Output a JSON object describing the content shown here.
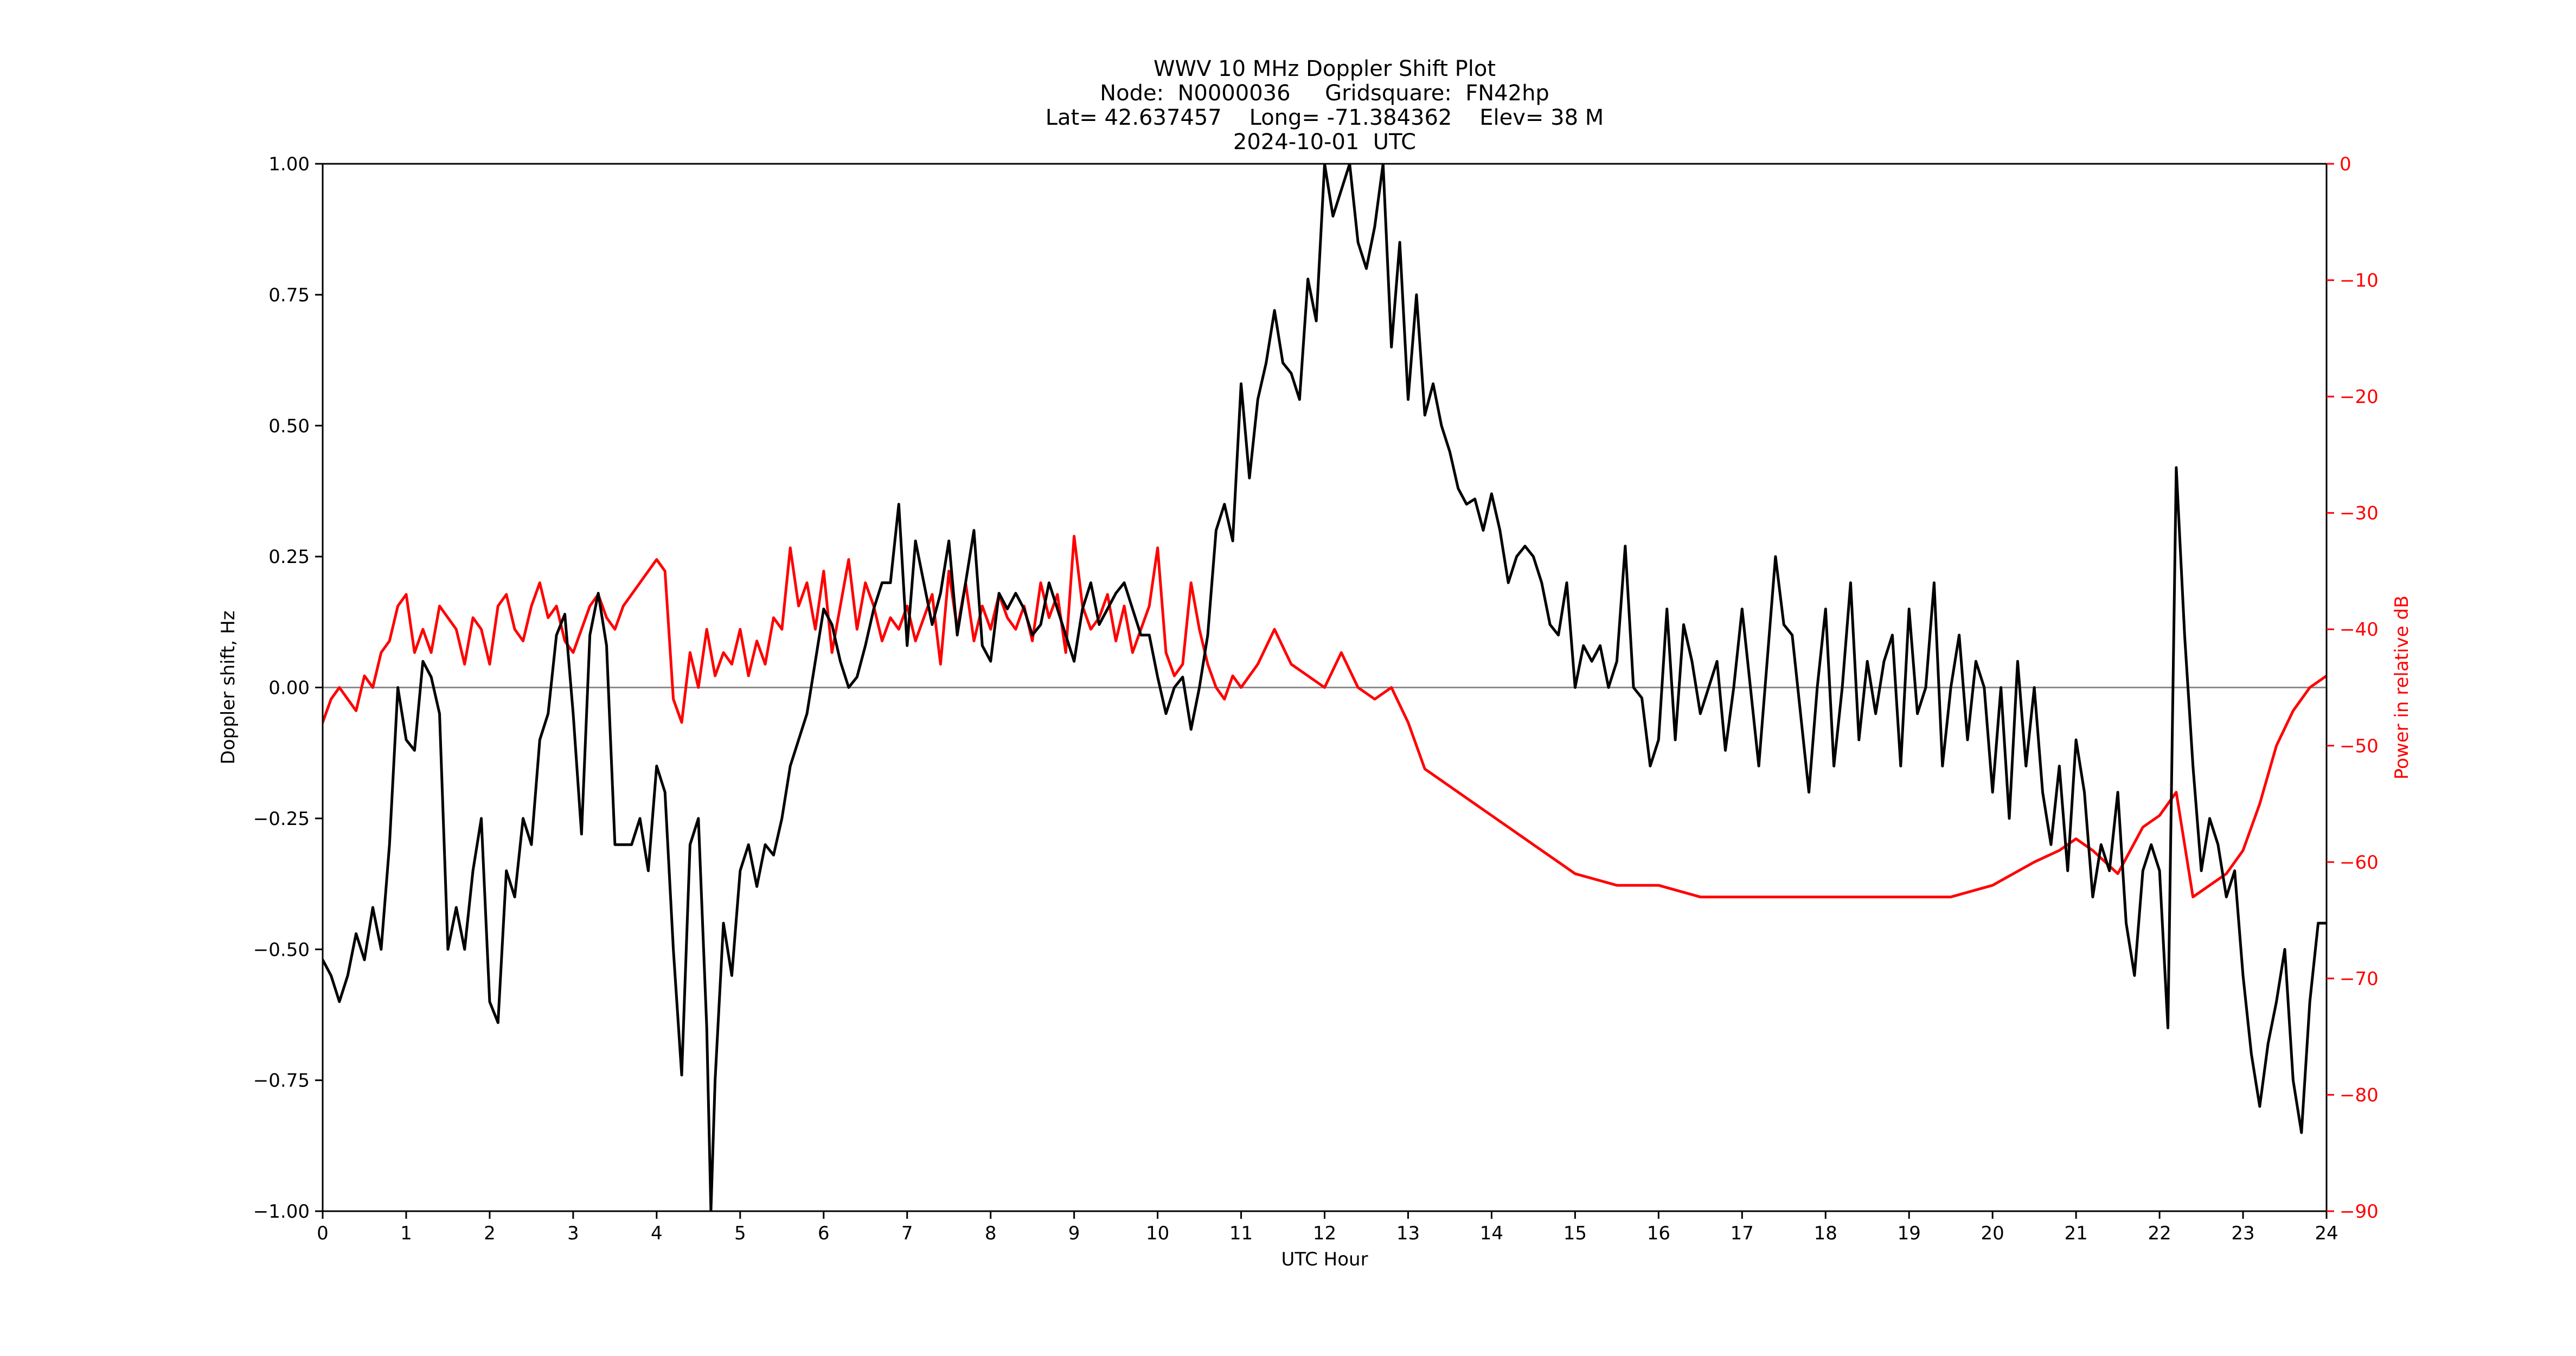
{
  "chart_data": {
    "type": "line",
    "title_lines": [
      "WWV 10 MHz Doppler Shift Plot",
      "Node:  N0000036     Gridsquare:  FN42hp",
      "Lat= 42.637457    Long= -71.384362    Elev= 38 M",
      "2024-10-01  UTC"
    ],
    "xlabel": "UTC Hour",
    "ylabel": "Doppler shift, Hz",
    "ylabel_right": "Power in relative dB",
    "xlim": [
      0,
      24
    ],
    "ylim": [
      -1.0,
      1.0
    ],
    "ylim_right": [
      -90,
      0
    ],
    "x_ticks": [
      "0",
      "1",
      "2",
      "3",
      "4",
      "5",
      "6",
      "7",
      "8",
      "9",
      "10",
      "11",
      "12",
      "13",
      "14",
      "15",
      "16",
      "17",
      "18",
      "19",
      "20",
      "21",
      "22",
      "23",
      "24"
    ],
    "y_ticks": [
      "1.00",
      "0.75",
      "0.50",
      "0.25",
      "0.00",
      "−0.25",
      "−0.50",
      "−0.75",
      "−1.00"
    ],
    "y_ticks_right": [
      "0",
      "−10",
      "−20",
      "−30",
      "−40",
      "−50",
      "−60",
      "−70",
      "−80",
      "−90"
    ],
    "zero_line": 0,
    "series": [
      {
        "color": "#000000",
        "axis": "left",
        "x": [
          0,
          0.1,
          0.2,
          0.3,
          0.4,
          0.5,
          0.6,
          0.7,
          0.8,
          0.9,
          1.0,
          1.1,
          1.2,
          1.3,
          1.4,
          1.5,
          1.6,
          1.7,
          1.8,
          1.9,
          2.0,
          2.1,
          2.2,
          2.3,
          2.4,
          2.5,
          2.6,
          2.7,
          2.8,
          2.9,
          3.0,
          3.1,
          3.2,
          3.3,
          3.4,
          3.5,
          3.6,
          3.7,
          3.8,
          3.9,
          4.0,
          4.1,
          4.2,
          4.3,
          4.4,
          4.5,
          4.6,
          4.65,
          4.7,
          4.8,
          4.9,
          5.0,
          5.1,
          5.2,
          5.3,
          5.4,
          5.5,
          5.6,
          5.7,
          5.8,
          5.9,
          6.0,
          6.1,
          6.2,
          6.3,
          6.4,
          6.5,
          6.6,
          6.7,
          6.8,
          6.9,
          7.0,
          7.1,
          7.2,
          7.3,
          7.4,
          7.5,
          7.6,
          7.7,
          7.8,
          7.9,
          8.0,
          8.1,
          8.2,
          8.3,
          8.4,
          8.5,
          8.6,
          8.7,
          8.8,
          8.9,
          9.0,
          9.1,
          9.2,
          9.3,
          9.4,
          9.5,
          9.6,
          9.7,
          9.8,
          9.9,
          10.0,
          10.1,
          10.2,
          10.3,
          10.4,
          10.5,
          10.6,
          10.7,
          10.8,
          10.9,
          11.0,
          11.1,
          11.2,
          11.3,
          11.4,
          11.5,
          11.6,
          11.7,
          11.8,
          11.9,
          12.0,
          12.1,
          12.2,
          12.3,
          12.4,
          12.5,
          12.6,
          12.7,
          12.8,
          12.9,
          13.0,
          13.1,
          13.2,
          13.3,
          13.4,
          13.5,
          13.6,
          13.7,
          13.8,
          13.9,
          14.0,
          14.1,
          14.2,
          14.3,
          14.4,
          14.5,
          14.6,
          14.7,
          14.8,
          14.9,
          15.0,
          15.1,
          15.2,
          15.3,
          15.4,
          15.5,
          15.6,
          15.7,
          15.8,
          15.9,
          16.0,
          16.1,
          16.2,
          16.3,
          16.4,
          16.5,
          16.6,
          16.7,
          16.8,
          16.9,
          17.0,
          17.1,
          17.2,
          17.3,
          17.4,
          17.5,
          17.6,
          17.7,
          17.8,
          17.9,
          18.0,
          18.1,
          18.2,
          18.3,
          18.4,
          18.5,
          18.6,
          18.7,
          18.8,
          18.9,
          19.0,
          19.1,
          19.2,
          19.3,
          19.4,
          19.5,
          19.6,
          19.7,
          19.8,
          19.9,
          20.0,
          20.1,
          20.2,
          20.3,
          20.4,
          20.5,
          20.6,
          20.7,
          20.8,
          20.9,
          21.0,
          21.1,
          21.2,
          21.3,
          21.4,
          21.5,
          21.6,
          21.7,
          21.8,
          21.9,
          22.0,
          22.1,
          22.2,
          22.3,
          22.4,
          22.5,
          22.6,
          22.7,
          22.8,
          22.9,
          23.0,
          23.1,
          23.2,
          23.3,
          23.4,
          23.5,
          23.6,
          23.7,
          23.8,
          23.9,
          24.0
        ],
        "values": [
          -0.52,
          -0.55,
          -0.6,
          -0.55,
          -0.47,
          -0.52,
          -0.42,
          -0.5,
          -0.3,
          0.0,
          -0.1,
          -0.12,
          0.05,
          0.02,
          -0.05,
          -0.5,
          -0.42,
          -0.5,
          -0.35,
          -0.25,
          -0.6,
          -0.64,
          -0.35,
          -0.4,
          -0.25,
          -0.3,
          -0.1,
          -0.05,
          0.1,
          0.14,
          -0.05,
          -0.28,
          0.1,
          0.18,
          0.08,
          -0.3,
          -0.3,
          -0.3,
          -0.25,
          -0.35,
          -0.15,
          -0.2,
          -0.5,
          -0.74,
          -0.3,
          -0.25,
          -0.65,
          -1.0,
          -0.75,
          -0.45,
          -0.55,
          -0.35,
          -0.3,
          -0.38,
          -0.3,
          -0.32,
          -0.25,
          -0.15,
          -0.1,
          -0.05,
          0.05,
          0.15,
          0.12,
          0.05,
          0.0,
          0.02,
          0.08,
          0.15,
          0.2,
          0.2,
          0.35,
          0.08,
          0.28,
          0.2,
          0.12,
          0.18,
          0.28,
          0.1,
          0.2,
          0.3,
          0.08,
          0.05,
          0.18,
          0.15,
          0.18,
          0.15,
          0.1,
          0.12,
          0.2,
          0.15,
          0.1,
          0.05,
          0.15,
          0.2,
          0.12,
          0.15,
          0.18,
          0.2,
          0.15,
          0.1,
          0.1,
          0.02,
          -0.05,
          0.0,
          0.02,
          -0.08,
          0.0,
          0.1,
          0.3,
          0.35,
          0.28,
          0.58,
          0.4,
          0.55,
          0.62,
          0.72,
          0.62,
          0.6,
          0.55,
          0.78,
          0.7,
          1.0,
          0.9,
          0.95,
          1.0,
          0.85,
          0.8,
          0.88,
          1.0,
          0.65,
          0.85,
          0.55,
          0.75,
          0.52,
          0.58,
          0.5,
          0.45,
          0.38,
          0.35,
          0.36,
          0.3,
          0.37,
          0.3,
          0.2,
          0.25,
          0.27,
          0.25,
          0.2,
          0.12,
          0.1,
          0.2,
          0.0,
          0.08,
          0.05,
          0.08,
          0.0,
          0.05,
          0.27,
          0.0,
          -0.02,
          -0.15,
          -0.1,
          0.15,
          -0.1,
          0.12,
          0.05,
          -0.05,
          0.0,
          0.05,
          -0.12,
          0.0,
          0.15,
          0.0,
          -0.15,
          0.05,
          0.25,
          0.12,
          0.1,
          -0.05,
          -0.2,
          0.0,
          0.15,
          -0.15,
          0.0,
          0.2,
          -0.1,
          0.05,
          -0.05,
          0.05,
          0.1,
          -0.15,
          0.15,
          -0.05,
          0.0,
          0.2,
          -0.15,
          0.0,
          0.1,
          -0.1,
          0.05,
          0.0,
          -0.2,
          0.0,
          -0.25,
          0.05,
          -0.15,
          0.0,
          -0.2,
          -0.3,
          -0.15,
          -0.35,
          -0.1,
          -0.2,
          -0.4,
          -0.3,
          -0.35,
          -0.2,
          -0.45,
          -0.55,
          -0.35,
          -0.3,
          -0.35,
          -0.65,
          0.42,
          0.1,
          -0.15,
          -0.35,
          -0.25,
          -0.3,
          -0.4,
          -0.35,
          -0.55,
          -0.7,
          -0.8,
          -0.68,
          -0.6,
          -0.5,
          -0.75,
          -0.85,
          -0.6,
          -0.45,
          -0.45
        ]
      },
      {
        "color": "#ff0000",
        "axis": "right",
        "x": [
          0,
          0.1,
          0.2,
          0.3,
          0.4,
          0.5,
          0.6,
          0.7,
          0.8,
          0.9,
          1.0,
          1.1,
          1.2,
          1.3,
          1.4,
          1.5,
          1.6,
          1.7,
          1.8,
          1.9,
          2.0,
          2.1,
          2.2,
          2.3,
          2.4,
          2.5,
          2.6,
          2.7,
          2.8,
          2.9,
          3.0,
          3.1,
          3.2,
          3.3,
          3.4,
          3.5,
          3.6,
          3.7,
          3.8,
          3.9,
          4.0,
          4.1,
          4.2,
          4.3,
          4.4,
          4.5,
          4.6,
          4.7,
          4.8,
          4.9,
          5.0,
          5.1,
          5.2,
          5.3,
          5.4,
          5.5,
          5.6,
          5.7,
          5.8,
          5.9,
          6.0,
          6.1,
          6.2,
          6.3,
          6.4,
          6.5,
          6.6,
          6.7,
          6.8,
          6.9,
          7.0,
          7.1,
          7.2,
          7.3,
          7.4,
          7.5,
          7.6,
          7.7,
          7.8,
          7.9,
          8.0,
          8.1,
          8.2,
          8.3,
          8.4,
          8.5,
          8.6,
          8.7,
          8.8,
          8.9,
          9.0,
          9.1,
          9.2,
          9.3,
          9.4,
          9.5,
          9.6,
          9.7,
          9.8,
          9.9,
          10.0,
          10.1,
          10.2,
          10.3,
          10.4,
          10.5,
          10.6,
          10.7,
          10.8,
          10.9,
          11.0,
          11.2,
          11.4,
          11.6,
          11.8,
          12.0,
          12.2,
          12.4,
          12.6,
          12.8,
          13.0,
          13.2,
          13.4,
          13.6,
          13.8,
          14.0,
          14.2,
          14.4,
          14.6,
          14.8,
          15.0,
          15.5,
          16.0,
          16.5,
          17.0,
          17.5,
          18.0,
          18.5,
          19.0,
          19.5,
          20.0,
          20.5,
          20.8,
          21.0,
          21.2,
          21.5,
          21.8,
          22.0,
          22.2,
          22.4,
          22.6,
          22.8,
          23.0,
          23.2,
          23.4,
          23.6,
          23.8,
          24.0
        ],
        "values": [
          -48,
          -46,
          -45,
          -46,
          -47,
          -44,
          -45,
          -42,
          -41,
          -38,
          -37,
          -42,
          -40,
          -42,
          -38,
          -39,
          -40,
          -43,
          -39,
          -40,
          -43,
          -38,
          -37,
          -40,
          -41,
          -38,
          -36,
          -39,
          -38,
          -41,
          -42,
          -40,
          -38,
          -37,
          -39,
          -40,
          -38,
          -37,
          -36,
          -35,
          -34,
          -35,
          -46,
          -48,
          -42,
          -45,
          -40,
          -44,
          -42,
          -43,
          -40,
          -44,
          -41,
          -43,
          -39,
          -40,
          -33,
          -38,
          -36,
          -40,
          -35,
          -42,
          -38,
          -34,
          -40,
          -36,
          -38,
          -41,
          -39,
          -40,
          -38,
          -41,
          -39,
          -37,
          -43,
          -35,
          -40,
          -36,
          -41,
          -38,
          -40,
          -37,
          -39,
          -40,
          -38,
          -41,
          -36,
          -39,
          -37,
          -42,
          -32,
          -38,
          -40,
          -39,
          -37,
          -41,
          -38,
          -42,
          -40,
          -38,
          -33,
          -42,
          -44,
          -43,
          -36,
          -40,
          -43,
          -45,
          -46,
          -44,
          -45,
          -43,
          -40,
          -43,
          -44,
          -45,
          -42,
          -45,
          -46,
          -45,
          -48,
          -52,
          -53,
          -54,
          -55,
          -56,
          -57,
          -58,
          -59,
          -60,
          -61,
          -62,
          -62,
          -63,
          -63,
          -63,
          -63,
          -63,
          -63,
          -63,
          -62,
          -60,
          -59,
          -58,
          -59,
          -61,
          -57,
          -56,
          -54,
          -63,
          -62,
          -61,
          -59,
          -55,
          -50,
          -47,
          -45,
          -44
        ]
      }
    ]
  }
}
